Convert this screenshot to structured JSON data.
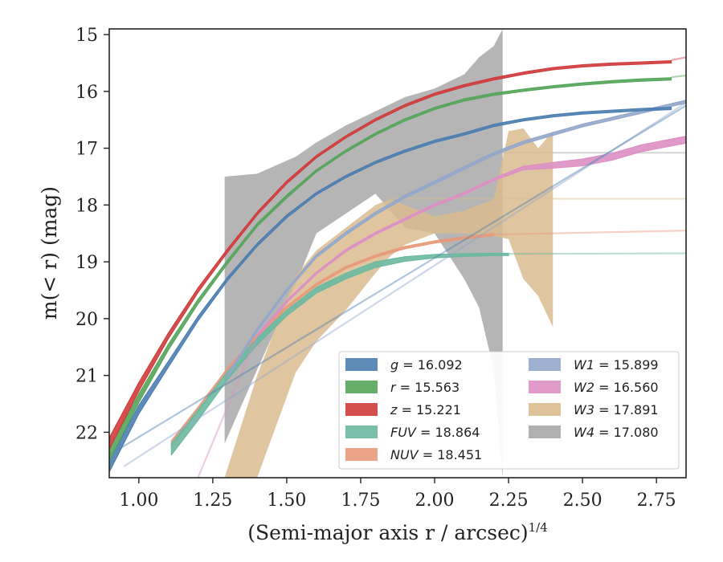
{
  "chart_data": {
    "type": "area",
    "xlabel": "(Semi-major axis r / arcsec)",
    "xlabel_superscript": "1/4",
    "ylabel": "m(< r) (mag)",
    "xlim": [
      0.9,
      2.85
    ],
    "ylim": [
      22.8,
      14.9
    ],
    "y_inverted": true,
    "x_ticks": [
      "1.00",
      "1.25",
      "1.50",
      "1.75",
      "2.00",
      "2.25",
      "2.50",
      "2.75"
    ],
    "x_tick_values": [
      1.0,
      1.25,
      1.5,
      1.75,
      2.0,
      2.25,
      2.5,
      2.75
    ],
    "y_ticks": [
      "15",
      "16",
      "17",
      "18",
      "19",
      "20",
      "21",
      "22"
    ],
    "y_tick_values": [
      15,
      16,
      17,
      18,
      19,
      20,
      21,
      22
    ],
    "grid": false,
    "legend_position": "lower-right",
    "series": [
      {
        "band": "g",
        "name_text": "g = 16.092",
        "color": "#4c7eb0",
        "x": [
          0.9,
          1.0,
          1.1,
          1.2,
          1.3,
          1.4,
          1.5,
          1.6,
          1.7,
          1.8,
          1.9,
          2.0,
          2.1,
          2.2,
          2.3,
          2.4,
          2.5,
          2.6,
          2.7,
          2.8
        ],
        "y": [
          22.6,
          21.6,
          20.8,
          20.0,
          19.3,
          18.7,
          18.2,
          17.8,
          17.5,
          17.25,
          17.05,
          16.88,
          16.75,
          16.6,
          16.5,
          16.43,
          16.38,
          16.35,
          16.32,
          16.3
        ],
        "width": [
          0.2,
          0.15,
          0.1,
          0.08,
          0.06,
          0.05,
          0.05,
          0.04,
          0.04,
          0.04,
          0.04,
          0.04,
          0.04,
          0.04,
          0.04,
          0.04,
          0.04,
          0.04,
          0.04,
          0.04
        ],
        "fade_x": [
          0.9,
          2.85
        ],
        "fade_y": [
          22.4,
          16.25
        ]
      },
      {
        "band": "r",
        "name_text": "r = 15.563",
        "color": "#55a55a",
        "x": [
          0.9,
          1.0,
          1.1,
          1.2,
          1.3,
          1.4,
          1.5,
          1.6,
          1.7,
          1.8,
          1.9,
          2.0,
          2.1,
          2.2,
          2.3,
          2.4,
          2.5,
          2.6,
          2.7,
          2.8
        ],
        "y": [
          22.4,
          21.4,
          20.5,
          19.7,
          19.0,
          18.35,
          17.85,
          17.4,
          17.05,
          16.75,
          16.5,
          16.3,
          16.15,
          16.05,
          15.98,
          15.92,
          15.87,
          15.83,
          15.8,
          15.78
        ],
        "width": [
          0.2,
          0.15,
          0.1,
          0.08,
          0.06,
          0.05,
          0.05,
          0.04,
          0.04,
          0.04,
          0.04,
          0.04,
          0.04,
          0.04,
          0.04,
          0.04,
          0.04,
          0.04,
          0.04,
          0.04
        ],
        "fade_x": [
          2.8,
          2.85
        ],
        "fade_y": [
          15.75,
          15.72
        ]
      },
      {
        "band": "z",
        "name_text": "z = 15.221",
        "color": "#d03c3c",
        "x": [
          0.9,
          1.0,
          1.1,
          1.2,
          1.3,
          1.4,
          1.5,
          1.6,
          1.7,
          1.8,
          1.9,
          2.0,
          2.1,
          2.2,
          2.3,
          2.4,
          2.5,
          2.6,
          2.7,
          2.8
        ],
        "y": [
          22.2,
          21.2,
          20.3,
          19.5,
          18.8,
          18.15,
          17.6,
          17.15,
          16.8,
          16.5,
          16.25,
          16.05,
          15.9,
          15.78,
          15.68,
          15.6,
          15.55,
          15.52,
          15.5,
          15.48
        ],
        "width": [
          0.2,
          0.15,
          0.1,
          0.08,
          0.06,
          0.05,
          0.05,
          0.04,
          0.04,
          0.04,
          0.04,
          0.04,
          0.04,
          0.04,
          0.04,
          0.04,
          0.04,
          0.04,
          0.04,
          0.04
        ],
        "fade_x": [
          2.8,
          2.85
        ],
        "fade_y": [
          15.45,
          15.4
        ]
      },
      {
        "band": "FUV",
        "name_text": "FUV = 18.864",
        "color": "#6bb8a0",
        "x": [
          1.11,
          1.2,
          1.3,
          1.4,
          1.5,
          1.6,
          1.7,
          1.8,
          1.9,
          2.0,
          2.1,
          2.2,
          2.25
        ],
        "y": [
          22.3,
          21.7,
          21.0,
          20.4,
          19.9,
          19.5,
          19.25,
          19.05,
          18.95,
          18.9,
          18.88,
          18.87,
          18.87
        ],
        "width": [
          0.2,
          0.18,
          0.14,
          0.12,
          0.1,
          0.1,
          0.1,
          0.1,
          0.08,
          0.06,
          0.05,
          0.04,
          0.04
        ],
        "fade_x": [
          2.25,
          2.85
        ],
        "fade_y": [
          18.86,
          18.85
        ]
      },
      {
        "band": "NUV",
        "name_text": "NUV = 18.451",
        "color": "#e8997a",
        "x": [
          1.11,
          1.2,
          1.3,
          1.4,
          1.5,
          1.6,
          1.7,
          1.8,
          1.9,
          2.0,
          2.1,
          2.2
        ],
        "y": [
          22.2,
          21.6,
          20.9,
          20.3,
          19.8,
          19.4,
          19.1,
          18.9,
          18.75,
          18.65,
          18.58,
          18.52
        ],
        "width": [
          0.1,
          0.08,
          0.06,
          0.05,
          0.04,
          0.04,
          0.04,
          0.04,
          0.04,
          0.04,
          0.04,
          0.04
        ],
        "fade_x": [
          2.2,
          2.85
        ],
        "fade_y": [
          18.52,
          18.45
        ]
      },
      {
        "band": "W1",
        "name_text": "W1 = 15.899",
        "color": "#93a7cb",
        "x": [
          1.3,
          1.4,
          1.5,
          1.6,
          1.7,
          1.8,
          1.9,
          2.0,
          2.1,
          2.2,
          2.3,
          2.4,
          2.5,
          2.6,
          2.7,
          2.8,
          2.85
        ],
        "y": [
          21.0,
          20.2,
          19.5,
          18.9,
          18.5,
          18.15,
          17.85,
          17.6,
          17.35,
          17.1,
          16.9,
          16.75,
          16.6,
          16.48,
          16.36,
          16.24,
          16.18
        ],
        "width": [
          0.06,
          0.05,
          0.05,
          0.05,
          0.05,
          0.05,
          0.05,
          0.05,
          0.05,
          0.05,
          0.05,
          0.05,
          0.05,
          0.05,
          0.05,
          0.05,
          0.05
        ],
        "fade_x": [
          0.95,
          2.85
        ],
        "fade_y": [
          22.6,
          16.2
        ]
      },
      {
        "band": "W2",
        "name_text": "W2 = 16.560",
        "color": "#dd8fc4",
        "x": [
          1.4,
          1.5,
          1.6,
          1.7,
          1.8,
          1.9,
          2.0,
          2.1,
          2.2,
          2.3,
          2.4,
          2.5,
          2.6,
          2.7,
          2.8,
          2.85
        ],
        "y": [
          20.3,
          19.7,
          19.2,
          18.8,
          18.5,
          18.25,
          18.0,
          17.8,
          17.55,
          17.35,
          17.3,
          17.25,
          17.15,
          17.0,
          16.9,
          16.85
        ],
        "width": [
          0.04,
          0.04,
          0.04,
          0.04,
          0.04,
          0.04,
          0.04,
          0.04,
          0.04,
          0.06,
          0.1,
          0.12,
          0.12,
          0.12,
          0.12,
          0.12
        ],
        "fade_x": [
          1.2,
          1.4
        ],
        "fade_y": [
          22.8,
          20.3
        ]
      },
      {
        "band": "W3",
        "name_text": "W3 = 17.891",
        "color": "#d9bb8f",
        "band_x": [
          1.29,
          1.4,
          1.53,
          1.6,
          1.7,
          1.8,
          1.85,
          1.9,
          2.0,
          2.1,
          2.2,
          2.25,
          2.3,
          2.35,
          2.4
        ],
        "band_low": [
          22.8,
          22.8,
          20.95,
          20.4,
          19.85,
          19.2,
          18.9,
          18.7,
          18.5,
          18.5,
          18.55,
          18.6,
          19.3,
          19.6,
          20.15
        ],
        "band_high": [
          22.8,
          21.0,
          19.25,
          18.8,
          18.4,
          18.0,
          17.9,
          18.0,
          18.2,
          18.1,
          17.9,
          16.7,
          16.65,
          17.0,
          16.7
        ],
        "band_low_end": [
          2.4,
          20.15
        ],
        "fade_x": [
          1.85,
          2.85
        ],
        "fade_y": [
          17.89,
          17.89
        ]
      },
      {
        "band": "W4",
        "name_text": "W4 = 17.080",
        "color": "#a8a8a8",
        "band_x": [
          1.29,
          1.4,
          1.53,
          1.6,
          1.7,
          1.8,
          1.9,
          2.0,
          2.1,
          2.15,
          2.2,
          2.23
        ],
        "band_low": [
          22.2,
          20.9,
          19.4,
          18.5,
          18.15,
          17.8,
          18.4,
          18.5,
          19.3,
          19.8,
          20.9,
          22.8
        ],
        "band_high": [
          17.5,
          17.45,
          17.15,
          16.9,
          16.6,
          16.35,
          16.1,
          15.95,
          15.7,
          15.4,
          15.2,
          14.9
        ],
        "fade_x": [
          2.23,
          2.85
        ],
        "fade_y": [
          17.08,
          17.08
        ]
      }
    ],
    "legend": [
      {
        "band": "g",
        "value": "= 16.092",
        "color": "#4c7eb0",
        "column": 0
      },
      {
        "band": "r",
        "value": "= 15.563",
        "color": "#55a55a",
        "column": 0
      },
      {
        "band": "z",
        "value": "= 15.221",
        "color": "#d03c3c",
        "column": 0
      },
      {
        "band": "FUV",
        "value": "= 18.864",
        "color": "#6bb8a0",
        "column": 0
      },
      {
        "band": "NUV",
        "value": "= 18.451",
        "color": "#e8997a",
        "column": 0
      },
      {
        "band": "W1",
        "value": "= 15.899",
        "color": "#93a7cb",
        "column": 1
      },
      {
        "band": "W2",
        "value": "= 16.560",
        "color": "#dd8fc4",
        "column": 1
      },
      {
        "band": "W3",
        "value": "= 17.891",
        "color": "#d9bb8f",
        "column": 1
      },
      {
        "band": "W4",
        "value": "= 17.080",
        "color": "#a8a8a8",
        "column": 1
      }
    ]
  }
}
